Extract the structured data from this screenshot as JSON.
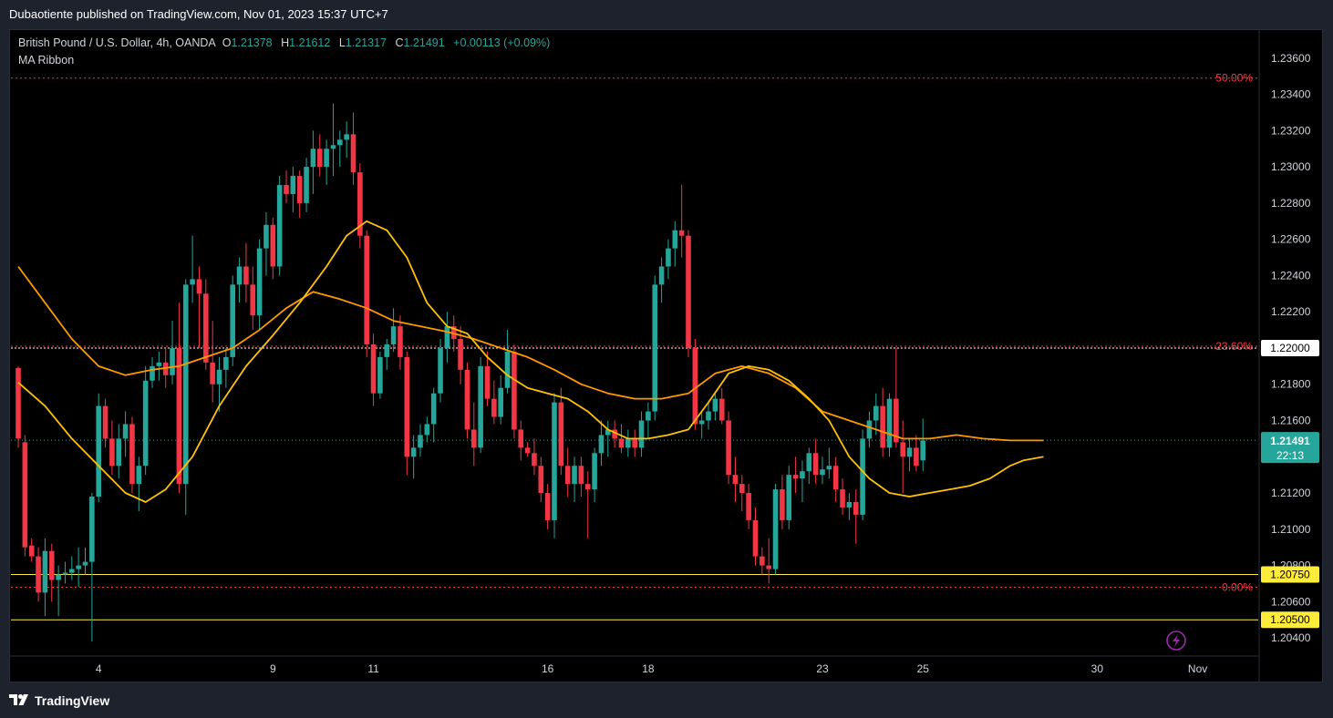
{
  "header": {
    "published": "Dubaotiente published on TradingView.com, Nov 01, 2023 15:37 UTC+7"
  },
  "legend": {
    "symbol": "British Pound / U.S. Dollar, 4h, OANDA",
    "o_label": "O",
    "o_value": "1.21378",
    "h_label": "H",
    "h_value": "1.21612",
    "l_label": "L",
    "l_value": "1.21317",
    "c_label": "C",
    "c_value": "1.21491",
    "change": "+0.00113 (+0.09%)",
    "indicator": "MA Ribbon"
  },
  "footer": {
    "brand": "TradingView"
  },
  "colors": {
    "up": "#26a69a",
    "down": "#f23645",
    "ma_fast": "#ffc107",
    "ma_slow": "#ff9800",
    "fib": "#f23645",
    "hline": "#ffeb3b"
  },
  "chart_data": {
    "type": "candlestick",
    "ylim": [
      1.203,
      1.2375
    ],
    "y_ticks": [
      "1.23600",
      "1.23400",
      "1.23200",
      "1.23000",
      "1.22800",
      "1.22600",
      "1.22400",
      "1.22200",
      "1.21800",
      "1.21600",
      "1.21200",
      "1.21000",
      "1.20800",
      "1.20600",
      "1.20400"
    ],
    "x_ticks": [
      {
        "label": "4",
        "index": 12
      },
      {
        "label": "9",
        "index": 38
      },
      {
        "label": "11",
        "index": 53
      },
      {
        "label": "16",
        "index": 79
      },
      {
        "label": "18",
        "index": 94
      },
      {
        "label": "23",
        "index": 120
      },
      {
        "label": "25",
        "index": 135
      },
      {
        "label": "30",
        "index": 161
      },
      {
        "label": "Nov",
        "index": 176
      }
    ],
    "fib_levels": [
      {
        "label": "50.00%",
        "value": 1.2349
      },
      {
        "label": "23.60%",
        "value": 1.2201
      },
      {
        "label": "0.00%",
        "value": 1.2068
      }
    ],
    "horizontal_lines": [
      {
        "label": "1.22000",
        "value": 1.22,
        "style": "dashed-white"
      },
      {
        "label": "1.20750",
        "value": 1.2075,
        "style": "yellow"
      },
      {
        "label": "1.20500",
        "value": 1.205,
        "style": "yellow"
      }
    ],
    "last_price": {
      "label": "1.21491",
      "countdown": "22:13",
      "value": 1.21491
    },
    "candles": [
      [
        1.2189,
        1.219,
        1.2145,
        1.215
      ],
      [
        1.2148,
        1.2152,
        1.2085,
        1.209
      ],
      [
        1.2091,
        1.2095,
        1.2082,
        1.2085
      ],
      [
        1.2085,
        1.209,
        1.206,
        1.2065
      ],
      [
        1.2065,
        1.2095,
        1.2052,
        1.2088
      ],
      [
        1.2088,
        1.2092,
        1.206,
        1.2072
      ],
      [
        1.2072,
        1.208,
        1.2052,
        1.2075
      ],
      [
        1.2075,
        1.2082,
        1.207,
        1.2076
      ],
      [
        1.2076,
        1.2085,
        1.2072,
        1.2078
      ],
      [
        1.2078,
        1.209,
        1.2068,
        1.208
      ],
      [
        1.208,
        1.209,
        1.2075,
        1.2082
      ],
      [
        1.2082,
        1.212,
        1.2038,
        1.2118
      ],
      [
        1.2118,
        1.2175,
        1.2115,
        1.2168
      ],
      [
        1.2168,
        1.2172,
        1.2145,
        1.215
      ],
      [
        1.215,
        1.216,
        1.213,
        1.2135
      ],
      [
        1.2135,
        1.2158,
        1.2128,
        1.215
      ],
      [
        1.215,
        1.2165,
        1.214,
        1.2158
      ],
      [
        1.2158,
        1.2162,
        1.212,
        1.2125
      ],
      [
        1.2125,
        1.214,
        1.211,
        1.2135
      ],
      [
        1.2135,
        1.219,
        1.213,
        1.2182
      ],
      [
        1.2182,
        1.2195,
        1.2178,
        1.219
      ],
      [
        1.219,
        1.2198,
        1.2182,
        1.2192
      ],
      [
        1.2192,
        1.22,
        1.2178,
        1.2185
      ],
      [
        1.2185,
        1.2215,
        1.218,
        1.22
      ],
      [
        1.22,
        1.2225,
        1.212,
        1.2125
      ],
      [
        1.2125,
        1.2238,
        1.2108,
        1.2235
      ],
      [
        1.2235,
        1.2262,
        1.2225,
        1.2238
      ],
      [
        1.2238,
        1.2245,
        1.22,
        1.223
      ],
      [
        1.223,
        1.2238,
        1.2188,
        1.2192
      ],
      [
        1.2192,
        1.2215,
        1.217,
        1.218
      ],
      [
        1.218,
        1.2195,
        1.2165,
        1.2188
      ],
      [
        1.2188,
        1.22,
        1.2178,
        1.2195
      ],
      [
        1.2195,
        1.224,
        1.219,
        1.2235
      ],
      [
        1.2235,
        1.225,
        1.2225,
        1.2245
      ],
      [
        1.2245,
        1.2258,
        1.2225,
        1.2235
      ],
      [
        1.2235,
        1.2245,
        1.221,
        1.2218
      ],
      [
        1.2218,
        1.226,
        1.221,
        1.2255
      ],
      [
        1.2255,
        1.2275,
        1.224,
        1.2268
      ],
      [
        1.2268,
        1.2272,
        1.2238,
        1.2245
      ],
      [
        1.2245,
        1.2295,
        1.224,
        1.229
      ],
      [
        1.229,
        1.2298,
        1.228,
        1.2285
      ],
      [
        1.2285,
        1.23,
        1.2275,
        1.2295
      ],
      [
        1.2295,
        1.2298,
        1.2272,
        1.228
      ],
      [
        1.228,
        1.2305,
        1.2275,
        1.23
      ],
      [
        1.23,
        1.232,
        1.2285,
        1.231
      ],
      [
        1.231,
        1.2318,
        1.2295,
        1.23
      ],
      [
        1.23,
        1.2315,
        1.229,
        1.231
      ],
      [
        1.231,
        1.2335,
        1.2295,
        1.2312
      ],
      [
        1.2312,
        1.232,
        1.23,
        1.2315
      ],
      [
        1.2315,
        1.2325,
        1.2305,
        1.2318
      ],
      [
        1.2318,
        1.233,
        1.229,
        1.2297
      ],
      [
        1.2297,
        1.2302,
        1.2255,
        1.2262
      ],
      [
        1.2262,
        1.2265,
        1.2195,
        1.2202
      ],
      [
        1.2202,
        1.2208,
        1.2168,
        1.2175
      ],
      [
        1.2175,
        1.2198,
        1.2172,
        1.2195
      ],
      [
        1.2195,
        1.2205,
        1.2188,
        1.2202
      ],
      [
        1.2202,
        1.2222,
        1.2198,
        1.2212
      ],
      [
        1.2212,
        1.2218,
        1.2188,
        1.2195
      ],
      [
        1.2195,
        1.2198,
        1.213,
        1.214
      ],
      [
        1.214,
        1.2152,
        1.2128,
        1.2145
      ],
      [
        1.2145,
        1.2158,
        1.214,
        1.2152
      ],
      [
        1.2152,
        1.2162,
        1.2148,
        1.2158
      ],
      [
        1.2158,
        1.2178,
        1.2148,
        1.2175
      ],
      [
        1.2175,
        1.2205,
        1.217,
        1.22
      ],
      [
        1.22,
        1.222,
        1.2192,
        1.2212
      ],
      [
        1.2212,
        1.2218,
        1.2198,
        1.2205
      ],
      [
        1.2205,
        1.2212,
        1.218,
        1.2188
      ],
      [
        1.2188,
        1.2192,
        1.215,
        1.2155
      ],
      [
        1.2155,
        1.217,
        1.2135,
        1.2145
      ],
      [
        1.2145,
        1.2195,
        1.2142,
        1.219
      ],
      [
        1.219,
        1.2198,
        1.2168,
        1.2172
      ],
      [
        1.2172,
        1.2182,
        1.2158,
        1.2162
      ],
      [
        1.2162,
        1.2185,
        1.2158,
        1.2178
      ],
      [
        1.2178,
        1.221,
        1.2175,
        1.2198
      ],
      [
        1.2198,
        1.2202,
        1.215,
        1.2155
      ],
      [
        1.2155,
        1.216,
        1.2138,
        1.2145
      ],
      [
        1.2145,
        1.2148,
        1.214,
        1.2142
      ],
      [
        1.2142,
        1.215,
        1.213,
        1.2135
      ],
      [
        1.2135,
        1.214,
        1.2115,
        1.212
      ],
      [
        1.212,
        1.2125,
        1.21,
        1.2105
      ],
      [
        1.2105,
        1.2175,
        1.2095,
        1.217
      ],
      [
        1.217,
        1.2178,
        1.213,
        1.2135
      ],
      [
        1.2135,
        1.2145,
        1.2118,
        1.2125
      ],
      [
        1.2125,
        1.214,
        1.2115,
        1.2135
      ],
      [
        1.2135,
        1.214,
        1.2118,
        1.2125
      ],
      [
        1.2125,
        1.2132,
        1.2095,
        1.2122
      ],
      [
        1.2122,
        1.2145,
        1.2115,
        1.2142
      ],
      [
        1.2142,
        1.216,
        1.2135,
        1.2152
      ],
      [
        1.2152,
        1.216,
        1.214,
        1.2155
      ],
      [
        1.2155,
        1.216,
        1.2145,
        1.215
      ],
      [
        1.215,
        1.2158,
        1.2142,
        1.2145
      ],
      [
        1.2145,
        1.2155,
        1.214,
        1.215
      ],
      [
        1.215,
        1.2155,
        1.214,
        1.2145
      ],
      [
        1.2145,
        1.2165,
        1.214,
        1.216
      ],
      [
        1.216,
        1.217,
        1.215,
        1.2165
      ],
      [
        1.2165,
        1.224,
        1.216,
        1.2235
      ],
      [
        1.2235,
        1.225,
        1.2225,
        1.2245
      ],
      [
        1.2245,
        1.226,
        1.2238,
        1.2255
      ],
      [
        1.2255,
        1.227,
        1.2245,
        1.2265
      ],
      [
        1.2265,
        1.229,
        1.225,
        1.2262
      ],
      [
        1.2262,
        1.2265,
        1.2195,
        1.22
      ],
      [
        1.22,
        1.2205,
        1.2155,
        1.2158
      ],
      [
        1.2158,
        1.2165,
        1.215,
        1.216
      ],
      [
        1.216,
        1.217,
        1.2155,
        1.2165
      ],
      [
        1.2165,
        1.2175,
        1.216,
        1.2172
      ],
      [
        1.2172,
        1.2178,
        1.2158,
        1.216
      ],
      [
        1.216,
        1.2165,
        1.2125,
        1.213
      ],
      [
        1.213,
        1.214,
        1.2115,
        1.2125
      ],
      [
        1.2125,
        1.213,
        1.211,
        1.212
      ],
      [
        1.212,
        1.2125,
        1.21,
        1.2105
      ],
      [
        1.2105,
        1.2112,
        1.208,
        1.2085
      ],
      [
        1.2085,
        1.209,
        1.2075,
        1.208
      ],
      [
        1.208,
        1.2095,
        1.207,
        1.2078
      ],
      [
        1.2078,
        1.2125,
        1.2075,
        1.2122
      ],
      [
        1.2122,
        1.213,
        1.21,
        1.2105
      ],
      [
        1.2105,
        1.2135,
        1.21,
        1.213
      ],
      [
        1.213,
        1.214,
        1.212,
        1.2128
      ],
      [
        1.2128,
        1.2138,
        1.2115,
        1.2132
      ],
      [
        1.2132,
        1.2145,
        1.2125,
        1.2142
      ],
      [
        1.2142,
        1.215,
        1.2125,
        1.213
      ],
      [
        1.213,
        1.214,
        1.2125,
        1.2133
      ],
      [
        1.2133,
        1.2145,
        1.2128,
        1.2135
      ],
      [
        1.2135,
        1.214,
        1.2115,
        1.2122
      ],
      [
        1.2122,
        1.2128,
        1.2108,
        1.2112
      ],
      [
        1.2112,
        1.212,
        1.2105,
        1.2115
      ],
      [
        1.2115,
        1.2122,
        1.2092,
        1.2108
      ],
      [
        1.2108,
        1.2155,
        1.2105,
        1.215
      ],
      [
        1.215,
        1.2165,
        1.2145,
        1.216
      ],
      [
        1.216,
        1.2175,
        1.2152,
        1.2168
      ],
      [
        1.2168,
        1.2178,
        1.214,
        1.2145
      ],
      [
        1.2145,
        1.2175,
        1.214,
        1.2172
      ],
      [
        1.2172,
        1.22,
        1.2145,
        1.2148
      ],
      [
        1.2148,
        1.216,
        1.212,
        1.214
      ],
      [
        1.214,
        1.215,
        1.2132,
        1.2145
      ],
      [
        1.2145,
        1.2152,
        1.2132,
        1.2135
      ],
      [
        1.2138,
        1.2161,
        1.2132,
        1.2149
      ]
    ],
    "ma_fast": [
      [
        0,
        1.2181
      ],
      [
        4,
        1.2168
      ],
      [
        8,
        1.215
      ],
      [
        12,
        1.2135
      ],
      [
        16,
        1.212
      ],
      [
        19,
        1.2115
      ],
      [
        22,
        1.2122
      ],
      [
        26,
        1.214
      ],
      [
        30,
        1.2168
      ],
      [
        34,
        1.219
      ],
      [
        38,
        1.2207
      ],
      [
        42,
        1.2225
      ],
      [
        46,
        1.2245
      ],
      [
        49,
        1.2262
      ],
      [
        52,
        1.227
      ],
      [
        55,
        1.2265
      ],
      [
        58,
        1.225
      ],
      [
        61,
        1.2225
      ],
      [
        64,
        1.2212
      ],
      [
        67,
        1.2208
      ],
      [
        70,
        1.2195
      ],
      [
        73,
        1.2185
      ],
      [
        76,
        1.2178
      ],
      [
        79,
        1.2175
      ],
      [
        82,
        1.2172
      ],
      [
        85,
        1.2165
      ],
      [
        88,
        1.2155
      ],
      [
        91,
        1.215
      ],
      [
        94,
        1.215
      ],
      [
        97,
        1.2152
      ],
      [
        100,
        1.2155
      ],
      [
        103,
        1.217
      ],
      [
        106,
        1.2186
      ],
      [
        109,
        1.219
      ],
      [
        112,
        1.2188
      ],
      [
        115,
        1.2182
      ],
      [
        118,
        1.2172
      ],
      [
        121,
        1.216
      ],
      [
        124,
        1.214
      ],
      [
        127,
        1.2128
      ],
      [
        130,
        1.212
      ],
      [
        133,
        1.2118
      ],
      [
        136,
        1.212
      ],
      [
        139,
        1.2122
      ],
      [
        142,
        1.2124
      ],
      [
        145,
        1.2128
      ],
      [
        148,
        1.2135
      ],
      [
        150,
        1.2138
      ],
      [
        153,
        1.214
      ]
    ],
    "ma_slow": [
      [
        0,
        1.2245
      ],
      [
        4,
        1.2225
      ],
      [
        8,
        1.2205
      ],
      [
        12,
        1.219
      ],
      [
        16,
        1.2185
      ],
      [
        20,
        1.2188
      ],
      [
        24,
        1.219
      ],
      [
        28,
        1.2195
      ],
      [
        32,
        1.22
      ],
      [
        36,
        1.221
      ],
      [
        40,
        1.2222
      ],
      [
        44,
        1.2231
      ],
      [
        48,
        1.2227
      ],
      [
        52,
        1.2222
      ],
      [
        56,
        1.2215
      ],
      [
        60,
        1.2212
      ],
      [
        64,
        1.2209
      ],
      [
        68,
        1.2205
      ],
      [
        72,
        1.22
      ],
      [
        76,
        1.2195
      ],
      [
        80,
        1.2188
      ],
      [
        84,
        1.218
      ],
      [
        88,
        1.2175
      ],
      [
        92,
        1.2172
      ],
      [
        96,
        1.2172
      ],
      [
        100,
        1.2175
      ],
      [
        104,
        1.2186
      ],
      [
        108,
        1.219
      ],
      [
        112,
        1.2186
      ],
      [
        116,
        1.2178
      ],
      [
        120,
        1.2165
      ],
      [
        124,
        1.216
      ],
      [
        128,
        1.2155
      ],
      [
        132,
        1.215
      ],
      [
        136,
        1.215
      ],
      [
        140,
        1.2152
      ],
      [
        144,
        1.215
      ],
      [
        148,
        1.2149
      ],
      [
        153,
        1.2149
      ]
    ]
  }
}
